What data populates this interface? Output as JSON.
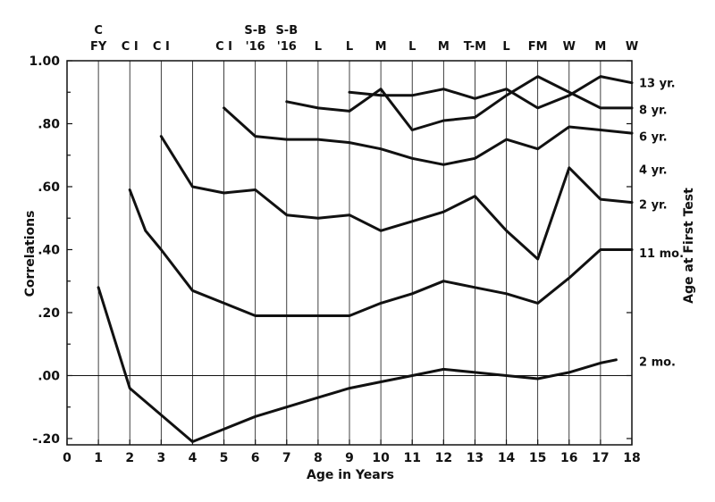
{
  "chart_data": {
    "type": "line",
    "title": "",
    "xlabel": "Age  in  Years",
    "ylabel": "Correlations",
    "y2label": "Age at First Test",
    "xlim": [
      0,
      18
    ],
    "ylim": [
      -0.22,
      1.0
    ],
    "x_ticks": [
      0,
      1,
      2,
      3,
      4,
      5,
      6,
      7,
      8,
      9,
      10,
      11,
      12,
      13,
      14,
      15,
      16,
      17,
      18
    ],
    "x_tick_labels": [
      "0",
      "1",
      "2",
      "3",
      "4",
      "5",
      "6",
      "7",
      "8",
      "9",
      "10",
      "11",
      "12",
      "13",
      "14",
      "15",
      "16",
      "17",
      "18"
    ],
    "y_ticks": [
      -0.2,
      0,
      0.2,
      0.4,
      0.6,
      0.8,
      1.0
    ],
    "y_tick_labels": [
      "-.20",
      ".00",
      ".20",
      ".40",
      ".60",
      ".80",
      "1.00"
    ],
    "grid": "vertical lines at each year",
    "test_labels": [
      {
        "x": 1,
        "text": "C",
        "row": 0
      },
      {
        "x": 1,
        "text": "FY",
        "row": 1
      },
      {
        "x": 2,
        "text": "C I",
        "row": 1
      },
      {
        "x": 3,
        "text": "C I",
        "row": 1
      },
      {
        "x": 5,
        "text": "C I",
        "row": 1
      },
      {
        "x": 6,
        "text": "S-B",
        "row": 0
      },
      {
        "x": 6,
        "text": "'16",
        "row": 1
      },
      {
        "x": 7,
        "text": "S-B",
        "row": 0
      },
      {
        "x": 7,
        "text": "'16",
        "row": 1
      },
      {
        "x": 8,
        "text": "L",
        "row": 1
      },
      {
        "x": 9,
        "text": "L",
        "row": 1
      },
      {
        "x": 10,
        "text": "M",
        "row": 1
      },
      {
        "x": 11,
        "text": "L",
        "row": 1
      },
      {
        "x": 12,
        "text": "M",
        "row": 1
      },
      {
        "x": 13,
        "text": "T-M",
        "row": 1
      },
      {
        "x": 14,
        "text": "L",
        "row": 1
      },
      {
        "x": 15,
        "text": "FM",
        "row": 1
      },
      {
        "x": 16,
        "text": "W",
        "row": 1
      },
      {
        "x": 17,
        "text": "M",
        "row": 1
      },
      {
        "x": 18,
        "text": "W",
        "row": 1
      }
    ],
    "series": [
      {
        "name": "13 yr.",
        "label_y": 0.93,
        "x": [
          9,
          10,
          11,
          12,
          13,
          14,
          15,
          16,
          17,
          18
        ],
        "y": [
          0.9,
          0.89,
          0.89,
          0.91,
          0.88,
          0.91,
          0.85,
          0.89,
          0.95,
          0.93
        ]
      },
      {
        "name": "8 yr.",
        "label_y": 0.845,
        "x": [
          7,
          8,
          9,
          10,
          11,
          12,
          13,
          14,
          15,
          16,
          17,
          18
        ],
        "y": [
          0.87,
          0.85,
          0.84,
          0.91,
          0.78,
          0.81,
          0.82,
          0.89,
          0.95,
          0.9,
          0.85,
          0.85
        ]
      },
      {
        "name": "6 yr.",
        "label_y": 0.76,
        "x": [
          5,
          6,
          7,
          8,
          9,
          10,
          11,
          12,
          13,
          14,
          15,
          16,
          17,
          18
        ],
        "y": [
          0.85,
          0.76,
          0.75,
          0.75,
          0.74,
          0.72,
          0.69,
          0.67,
          0.69,
          0.75,
          0.72,
          0.79,
          0.78,
          0.77
        ]
      },
      {
        "name": "4 yr.",
        "label_y": 0.655,
        "x": [
          3,
          4,
          5,
          6,
          7,
          8,
          9,
          10,
          11,
          12,
          13,
          14,
          15,
          16,
          17,
          18
        ],
        "y": [
          0.76,
          0.6,
          0.58,
          0.59,
          0.51,
          0.5,
          0.51,
          0.46,
          0.49,
          0.52,
          0.57,
          0.46,
          0.37,
          0.66,
          0.56,
          0.55
        ]
      },
      {
        "name": "2 yr.",
        "label_y": 0.545,
        "x": [
          2,
          2.5,
          3,
          4,
          5,
          6,
          7,
          8,
          9,
          10,
          11,
          12,
          13,
          14,
          15,
          16,
          17,
          18
        ],
        "y": [
          0.59,
          0.46,
          0.4,
          0.27,
          0.23,
          0.19,
          0.19,
          0.19,
          0.19,
          0.23,
          0.26,
          0.3,
          0.28,
          0.26,
          0.23,
          0.31,
          0.4,
          0.4
        ]
      },
      {
        "name": "11 mo.",
        "label_y": 0.39,
        "x": [],
        "y": []
      },
      {
        "name": "2 mo.",
        "label_y": 0.045,
        "x": [
          1,
          2,
          4,
          5,
          6,
          7,
          8,
          9,
          10,
          11,
          12,
          13,
          14,
          15,
          16,
          17,
          17.5
        ],
        "y": [
          0.28,
          -0.04,
          -0.21,
          -0.17,
          -0.13,
          -0.1,
          -0.07,
          -0.04,
          -0.02,
          0.0,
          0.02,
          0.01,
          0.0,
          -0.01,
          0.01,
          0.04,
          0.05
        ]
      }
    ]
  }
}
